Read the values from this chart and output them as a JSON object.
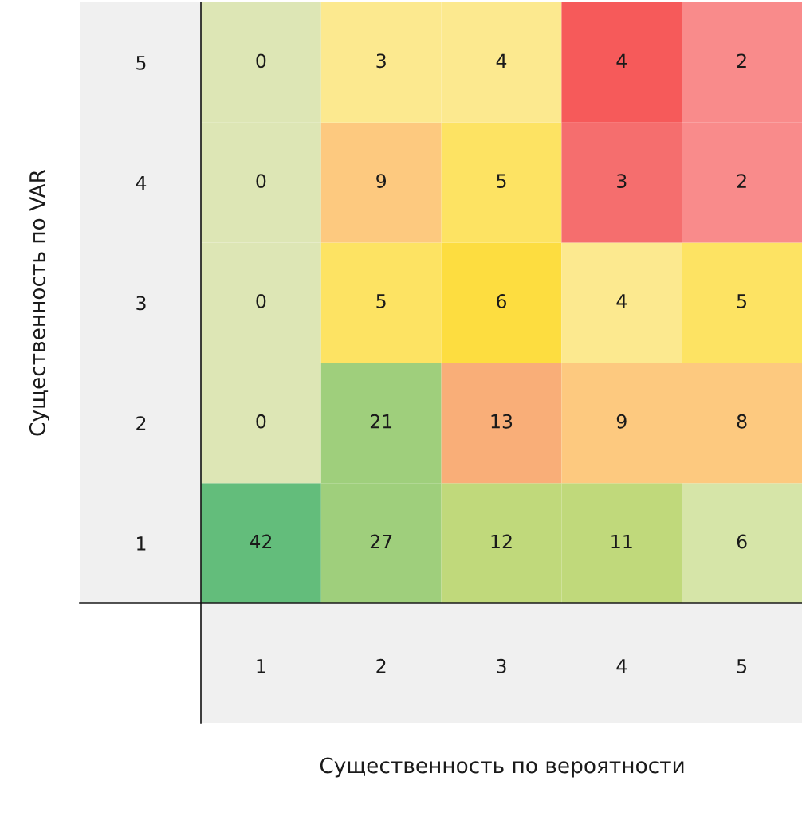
{
  "chart_data": {
    "type": "heatmap",
    "xlabel": "Существенность по вероятности",
    "ylabel": "Существенность по VAR",
    "categories": [
      "1",
      "2",
      "3",
      "4",
      "5"
    ],
    "y_categories": [
      "5",
      "4",
      "3",
      "2",
      "1"
    ],
    "cells": [
      [
        0,
        3,
        4,
        4,
        2
      ],
      [
        0,
        9,
        5,
        3,
        2
      ],
      [
        0,
        5,
        6,
        4,
        5
      ],
      [
        0,
        21,
        13,
        9,
        8
      ],
      [
        42,
        27,
        12,
        11,
        6
      ]
    ],
    "colors": [
      [
        "#dde6b5",
        "#fce98f",
        "#fce98f",
        "#f65a5a",
        "#f98b8b"
      ],
      [
        "#dde6b5",
        "#fdc97f",
        "#fde363",
        "#f56e6e",
        "#f98b8b"
      ],
      [
        "#dde6b5",
        "#fde363",
        "#fddd40",
        "#fce98f",
        "#fde363"
      ],
      [
        "#dde6b5",
        "#9fcf7c",
        "#f9ae78",
        "#fdc97f",
        "#fdc97f"
      ],
      [
        "#63bd7b",
        "#9fcf7c",
        "#c0d97b",
        "#c0d97b",
        "#d6e5a8"
      ]
    ],
    "data_labels": true
  }
}
